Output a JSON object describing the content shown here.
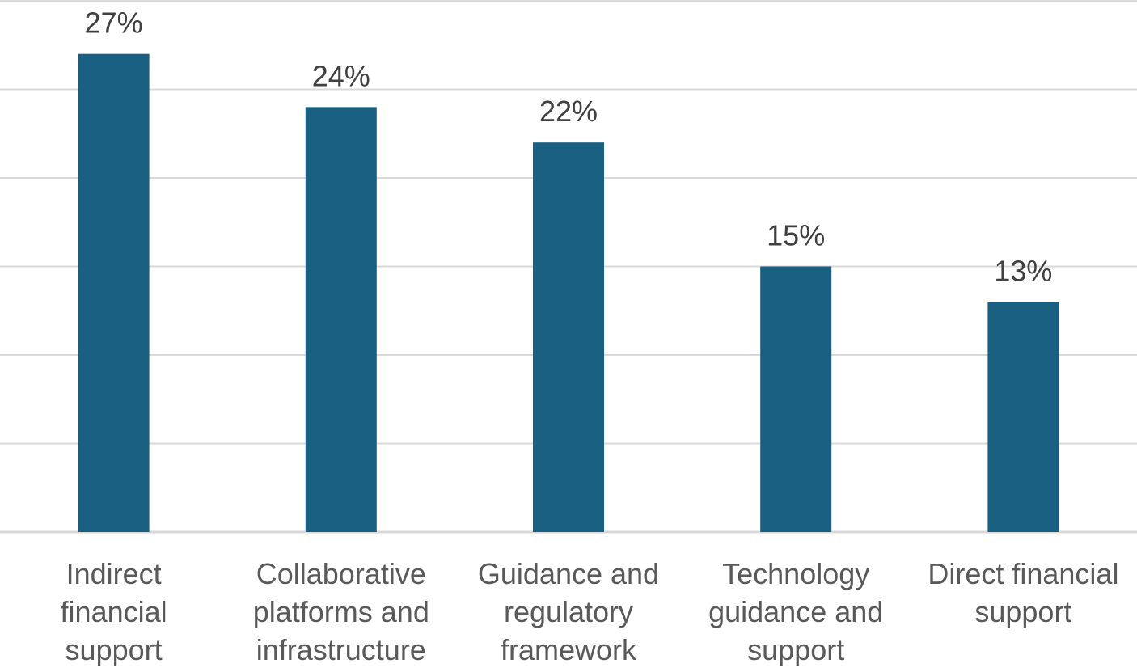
{
  "chart_data": {
    "type": "bar",
    "categories": [
      [
        "Indirect",
        "financial",
        "support"
      ],
      [
        "Collaborative",
        "platforms and",
        "infrastructure"
      ],
      [
        "Guidance and",
        "regulatory",
        "framework"
      ],
      [
        "Technology",
        "guidance and",
        "support"
      ],
      [
        "Direct financial",
        "support"
      ]
    ],
    "values": [
      27,
      24,
      22,
      15,
      13
    ],
    "value_labels": [
      "27%",
      "24%",
      "22%",
      "15%",
      "13%"
    ],
    "value_unit": "%",
    "ylim": [
      0,
      30
    ],
    "grid_step": 5,
    "grid": true,
    "legend": "none",
    "title": "",
    "xlabel": "",
    "ylabel": "",
    "colors": {
      "bar": "#185F82",
      "grid": "#D9D9D9",
      "value_text": "#404040",
      "category_text": "#595959"
    }
  }
}
